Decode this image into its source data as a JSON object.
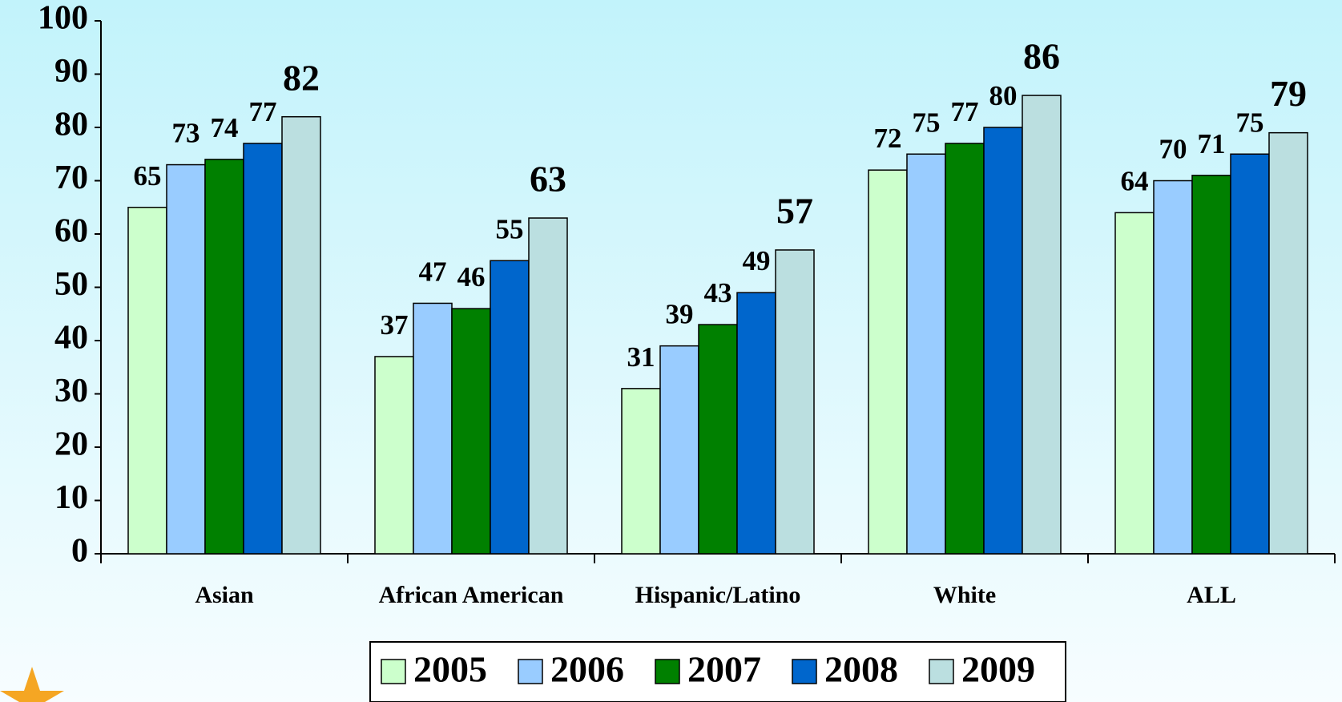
{
  "chart_data": {
    "type": "bar",
    "categories": [
      "Asian",
      "African American",
      "Hispanic/Latino",
      "White",
      "ALL"
    ],
    "series": [
      {
        "name": "2005",
        "color": "#ccffcc",
        "values": [
          65,
          37,
          31,
          72,
          64
        ]
      },
      {
        "name": "2006",
        "color": "#99ccff",
        "values": [
          73,
          47,
          39,
          75,
          70
        ]
      },
      {
        "name": "2007",
        "color": "#008000",
        "values": [
          74,
          46,
          43,
          77,
          71
        ]
      },
      {
        "name": "2008",
        "color": "#0066cc",
        "values": [
          77,
          55,
          49,
          80,
          75
        ]
      },
      {
        "name": "2009",
        "color": "#bbdfe0",
        "values": [
          82,
          63,
          57,
          86,
          79
        ]
      }
    ],
    "ylim": [
      0,
      100
    ],
    "yticks": [
      0,
      10,
      20,
      30,
      40,
      50,
      60,
      70,
      80,
      90,
      100
    ],
    "grid": false,
    "legend": "bottom"
  }
}
